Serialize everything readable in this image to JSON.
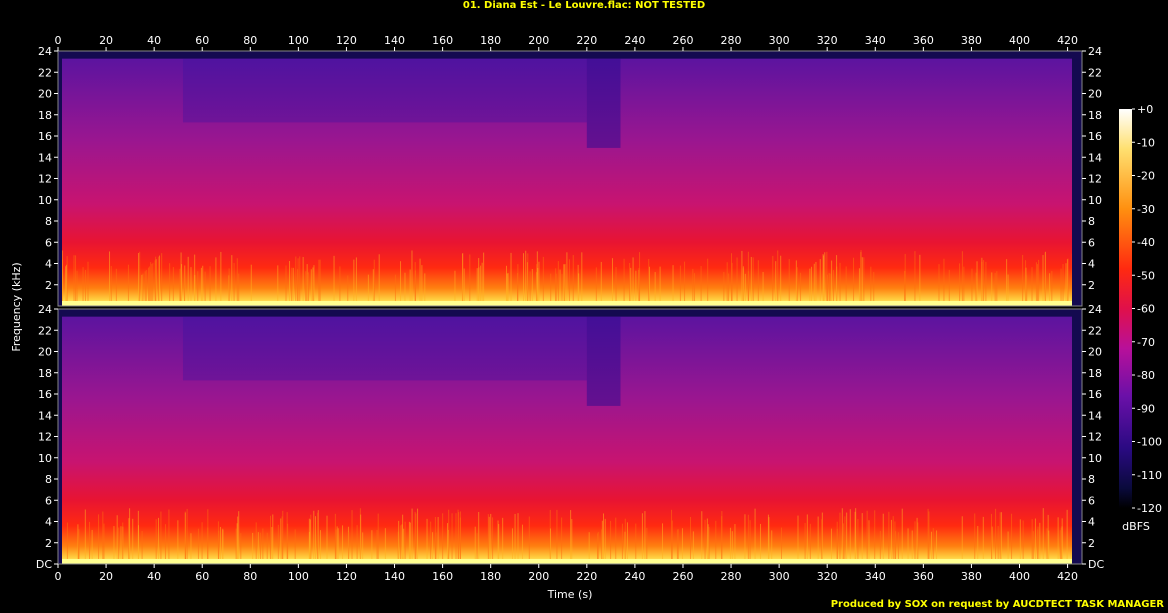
{
  "title": "01. Diana Est - Le Louvre.flac: NOT TESTED",
  "credit": "Produced by SOX on request by AUCDTECT TASK MANAGER",
  "chart_data": {
    "type": "heatmap",
    "title": "01. Diana Est - Le Louvre.flac: NOT TESTED",
    "xlabel": "Time (s)",
    "ylabel": "Frequency (kHz)",
    "x_ticks": [
      "0",
      "20",
      "40",
      "60",
      "80",
      "100",
      "120",
      "140",
      "160",
      "180",
      "200",
      "220",
      "240",
      "260",
      "280",
      "300",
      "320",
      "340",
      "360",
      "380",
      "400",
      "420"
    ],
    "x_range": [
      0,
      426
    ],
    "channels": 2,
    "y_ticks_channel_top": [
      "24",
      "22",
      "20",
      "18",
      "16",
      "14",
      "12",
      "10",
      "8",
      "6",
      "4",
      "2"
    ],
    "y_ticks_channel_bottom": [
      "24",
      "22",
      "20",
      "18",
      "16",
      "14",
      "12",
      "10",
      "8",
      "6",
      "4",
      "2",
      "DC"
    ],
    "y_range_khz": [
      0,
      24
    ],
    "colorbar": {
      "unit": "dBFS",
      "ticks": [
        "+0",
        "-10",
        "-20",
        "-30",
        "-40",
        "-50",
        "-60",
        "-70",
        "-80",
        "-90",
        "-100",
        "-110",
        "-120"
      ],
      "range": [
        -120,
        0
      ],
      "colors": [
        "#000000",
        "#0a0a3c",
        "#2a0a82",
        "#5a0ea0",
        "#8a10a0",
        "#b8109a",
        "#d8106a",
        "#f0183a",
        "#ff3010",
        "#ff7010",
        "#ffb020",
        "#ffe070",
        "#ffffff"
      ]
    },
    "grid": false,
    "legend": "right"
  }
}
